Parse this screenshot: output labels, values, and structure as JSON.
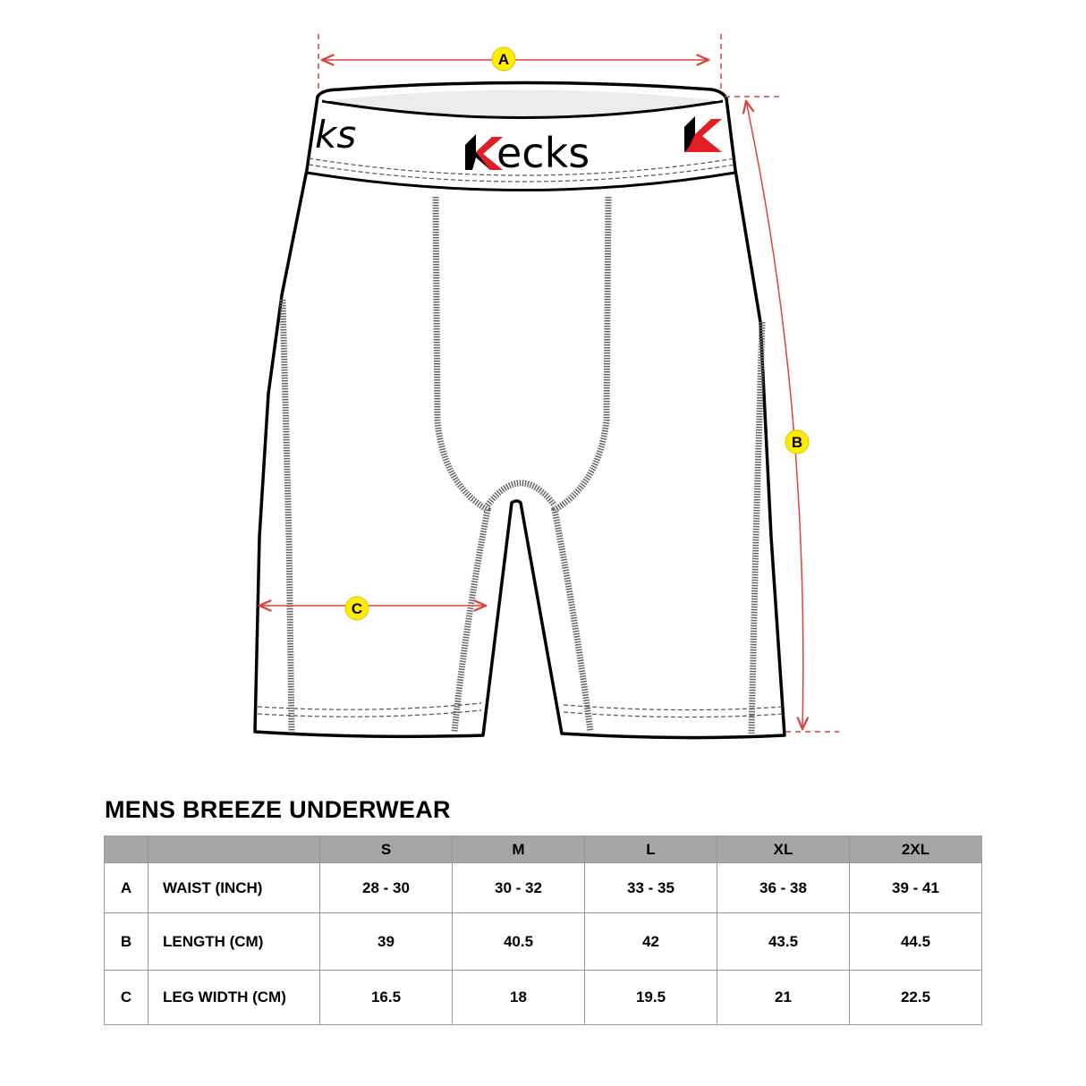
{
  "brand": {
    "logo_text": "Kecks",
    "accent": "#e31e24"
  },
  "diagram": {
    "markers": [
      {
        "label": "A",
        "measures": "waist"
      },
      {
        "label": "B",
        "measures": "length"
      },
      {
        "label": "C",
        "measures": "leg width"
      }
    ],
    "marker_color": "#ffed00",
    "line_color": "#d9443a"
  },
  "table": {
    "title": "MENS BREEZE UNDERWEAR",
    "header_bg": "#a6a6a6",
    "sizes": [
      "S",
      "M",
      "L",
      "XL",
      "2XL"
    ],
    "rows": [
      {
        "key": "A",
        "label": "WAIST (INCH)",
        "values": [
          "28 - 30",
          "30 - 32",
          "33 - 35",
          "36 - 38",
          "39 - 41"
        ]
      },
      {
        "key": "B",
        "label": "LENGTH (CM)",
        "values": [
          "39",
          "40.5",
          "42",
          "43.5",
          "44.5"
        ]
      },
      {
        "key": "C",
        "label": "LEG WIDTH (CM)",
        "values": [
          "16.5",
          "18",
          "19.5",
          "21",
          "22.5"
        ]
      }
    ]
  }
}
